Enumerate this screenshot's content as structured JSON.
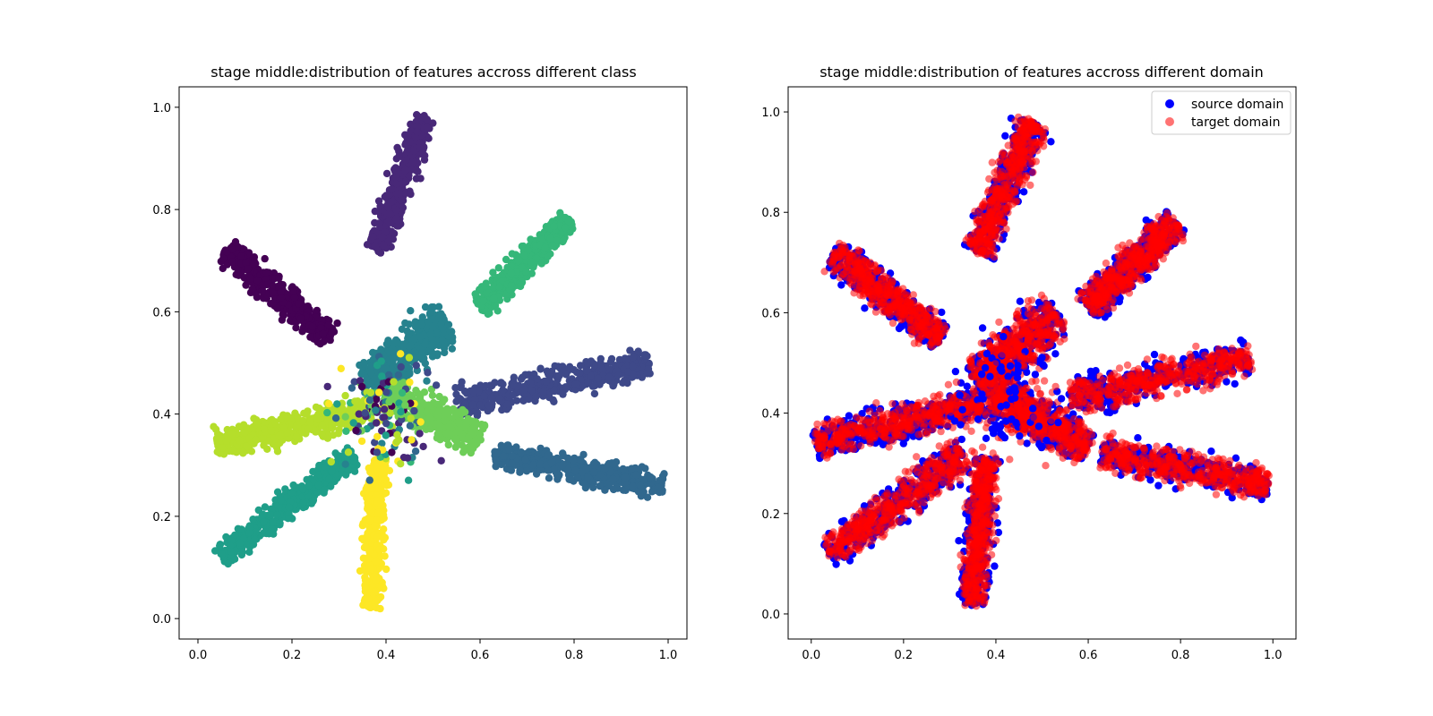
{
  "chart_data": [
    {
      "type": "scatter",
      "title": "stage middle:distribution of features accross different class",
      "xlabel": "",
      "ylabel": "",
      "xlim": [
        -0.04,
        1.04
      ],
      "ylim": [
        -0.04,
        1.04
      ],
      "xticks": [
        "0.0",
        "0.2",
        "0.4",
        "0.6",
        "0.8",
        "1.0"
      ],
      "yticks": [
        "0.0",
        "0.2",
        "0.4",
        "0.6",
        "0.8",
        "1.0"
      ],
      "grid": false,
      "clusters": [
        {
          "color": "#440154",
          "x1": 0.06,
          "y1": 0.72,
          "x2": 0.28,
          "y2": 0.55,
          "width": 0.07,
          "n": 450
        },
        {
          "color": "#482878",
          "x1": 0.38,
          "y1": 0.72,
          "x2": 0.48,
          "y2": 0.98,
          "width": 0.07,
          "n": 450
        },
        {
          "color": "#3e4989",
          "x1": 0.55,
          "y1": 0.42,
          "x2": 0.96,
          "y2": 0.5,
          "width": 0.08,
          "n": 450
        },
        {
          "color": "#31688e",
          "x1": 0.63,
          "y1": 0.32,
          "x2": 0.99,
          "y2": 0.26,
          "width": 0.07,
          "n": 450
        },
        {
          "color": "#26828e",
          "x1": 0.36,
          "y1": 0.46,
          "x2": 0.53,
          "y2": 0.58,
          "width": 0.12,
          "n": 420
        },
        {
          "color": "#1f9e89",
          "x1": 0.05,
          "y1": 0.12,
          "x2": 0.33,
          "y2": 0.32,
          "width": 0.07,
          "n": 450
        },
        {
          "color": "#35b779",
          "x1": 0.6,
          "y1": 0.61,
          "x2": 0.79,
          "y2": 0.78,
          "width": 0.07,
          "n": 450
        },
        {
          "color": "#6ece58",
          "x1": 0.4,
          "y1": 0.44,
          "x2": 0.6,
          "y2": 0.35,
          "width": 0.1,
          "n": 420
        },
        {
          "color": "#b5de2b",
          "x1": 0.04,
          "y1": 0.34,
          "x2": 0.37,
          "y2": 0.41,
          "width": 0.08,
          "n": 450
        },
        {
          "color": "#fde725",
          "x1": 0.38,
          "y1": 0.31,
          "x2": 0.37,
          "y2": 0.02,
          "width": 0.06,
          "n": 420
        }
      ]
    },
    {
      "type": "scatter",
      "title": "stage middle:distribution of features accross different domain",
      "xlabel": "",
      "ylabel": "",
      "xlim": [
        -0.05,
        1.05
      ],
      "ylim": [
        -0.05,
        1.05
      ],
      "xticks": [
        "0.0",
        "0.2",
        "0.4",
        "0.6",
        "0.8",
        "1.0"
      ],
      "yticks": [
        "0.0",
        "0.2",
        "0.4",
        "0.6",
        "0.8",
        "1.0"
      ],
      "grid": false,
      "legend_position": "top-right",
      "series": [
        {
          "name": "source domain",
          "color": "#0000ff",
          "opacity": 1.0
        },
        {
          "name": "target domain",
          "color": "#ff0000",
          "opacity": 0.55
        }
      ],
      "arms": [
        {
          "x1": 0.05,
          "y1": 0.72,
          "x2": 0.28,
          "y2": 0.55,
          "width": 0.09
        },
        {
          "x1": 0.36,
          "y1": 0.72,
          "x2": 0.48,
          "y2": 0.98,
          "width": 0.09
        },
        {
          "x1": 0.56,
          "y1": 0.43,
          "x2": 0.95,
          "y2": 0.51,
          "width": 0.1
        },
        {
          "x1": 0.63,
          "y1": 0.32,
          "x2": 0.99,
          "y2": 0.26,
          "width": 0.09
        },
        {
          "x1": 0.36,
          "y1": 0.46,
          "x2": 0.53,
          "y2": 0.6,
          "width": 0.14
        },
        {
          "x1": 0.04,
          "y1": 0.12,
          "x2": 0.33,
          "y2": 0.32,
          "width": 0.1
        },
        {
          "x1": 0.6,
          "y1": 0.61,
          "x2": 0.79,
          "y2": 0.78,
          "width": 0.1
        },
        {
          "x1": 0.4,
          "y1": 0.44,
          "x2": 0.6,
          "y2": 0.33,
          "width": 0.12
        },
        {
          "x1": 0.01,
          "y1": 0.34,
          "x2": 0.37,
          "y2": 0.42,
          "width": 0.1
        },
        {
          "x1": 0.38,
          "y1": 0.31,
          "x2": 0.35,
          "y2": 0.02,
          "width": 0.08
        }
      ]
    }
  ]
}
